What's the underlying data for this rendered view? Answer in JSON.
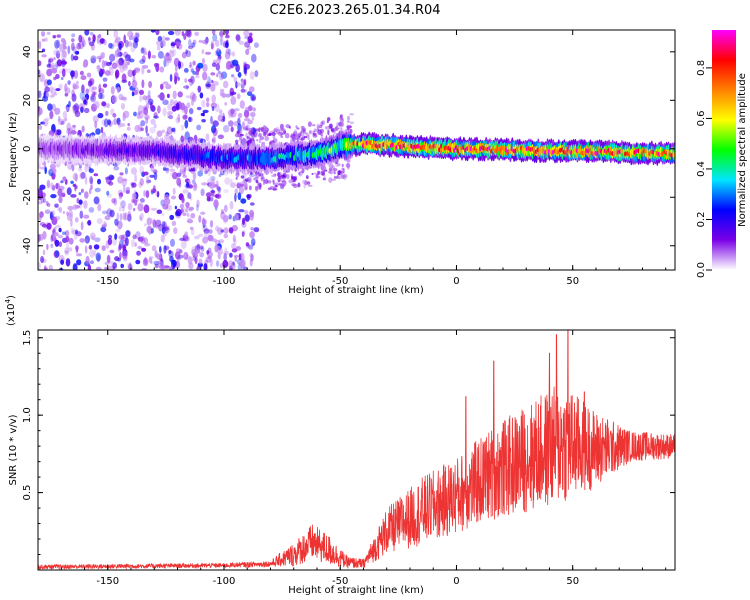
{
  "title": "C2E6.2023.265.01.34.R04",
  "chart_data": [
    {
      "type": "heatmap",
      "xlabel": "Height of straight line (km)",
      "ylabel": "Frequency (Hz)",
      "xlim": [
        -180,
        94
      ],
      "ylim": [
        -50,
        49
      ],
      "xticks": [
        "-150",
        "-100",
        "-50",
        "0",
        "50"
      ],
      "yticks": [
        "-40",
        "-20",
        "0",
        "20",
        "40"
      ],
      "colorbar": {
        "label": "Normalized spectral amplitude",
        "range": [
          0,
          0.95
        ],
        "ticks": [
          "0.0",
          "0.2",
          "0.4",
          "0.6",
          "0.8"
        ],
        "colors": [
          "#ffffff",
          "#7a00e6",
          "#0000ff",
          "#00e5ff",
          "#00ff00",
          "#ffff00",
          "#ff8000",
          "#ff0000",
          "#ff00ff"
        ]
      },
      "features": {
        "noise_region_x": [
          -180,
          -92
        ],
        "ridge": [
          {
            "x": -180,
            "y": 0,
            "amp": 0.1
          },
          {
            "x": -130,
            "y": -1,
            "amp": 0.2
          },
          {
            "x": -100,
            "y": -4,
            "amp": 0.3
          },
          {
            "x": -80,
            "y": -4,
            "amp": 0.35
          },
          {
            "x": -60,
            "y": -2,
            "amp": 0.45
          },
          {
            "x": -50,
            "y": 1,
            "amp": 0.55
          },
          {
            "x": -40,
            "y": 2,
            "amp": 0.8
          },
          {
            "x": 0,
            "y": 0,
            "amp": 0.85
          },
          {
            "x": 50,
            "y": -1,
            "amp": 0.85
          },
          {
            "x": 94,
            "y": -2,
            "amp": 0.8
          }
        ]
      }
    },
    {
      "type": "line",
      "xlabel": "Height of straight line (km)",
      "ylabel": "SNR (10 * v/v)",
      "y_multiplier": "(x10",
      "y_exponent": "4",
      "y_multiplier_close": ")",
      "xlim": [
        -180,
        94
      ],
      "ylim": [
        0,
        1.55
      ],
      "xticks": [
        "-150",
        "-100",
        "-50",
        "0",
        "50"
      ],
      "yticks": [
        "0.5",
        "1.0",
        "1.5"
      ],
      "color": "#ee3333",
      "envelope": [
        {
          "x": -180,
          "base": 0.02,
          "amp": 0.015
        },
        {
          "x": -100,
          "base": 0.03,
          "amp": 0.015
        },
        {
          "x": -80,
          "base": 0.04,
          "amp": 0.02
        },
        {
          "x": -70,
          "base": 0.1,
          "amp": 0.08
        },
        {
          "x": -62,
          "base": 0.18,
          "amp": 0.12
        },
        {
          "x": -55,
          "base": 0.13,
          "amp": 0.1
        },
        {
          "x": -47,
          "base": 0.05,
          "amp": 0.04
        },
        {
          "x": -40,
          "base": 0.04,
          "amp": 0.03
        },
        {
          "x": -30,
          "base": 0.25,
          "amp": 0.15
        },
        {
          "x": -15,
          "base": 0.38,
          "amp": 0.22
        },
        {
          "x": 0,
          "base": 0.48,
          "amp": 0.25
        },
        {
          "x": 15,
          "base": 0.62,
          "amp": 0.3
        },
        {
          "x": 30,
          "base": 0.72,
          "amp": 0.35
        },
        {
          "x": 45,
          "base": 0.82,
          "amp": 0.4
        },
        {
          "x": 60,
          "base": 0.78,
          "amp": 0.25
        },
        {
          "x": 75,
          "base": 0.8,
          "amp": 0.1
        },
        {
          "x": 94,
          "base": 0.8,
          "amp": 0.08
        }
      ],
      "peaks": [
        {
          "x": 4,
          "y": 1.12
        },
        {
          "x": 16,
          "y": 1.35
        },
        {
          "x": 40,
          "y": 1.4
        },
        {
          "x": 43,
          "y": 1.52
        },
        {
          "x": 48,
          "y": 1.55
        },
        {
          "x": 55,
          "y": 1.15
        }
      ]
    }
  ]
}
